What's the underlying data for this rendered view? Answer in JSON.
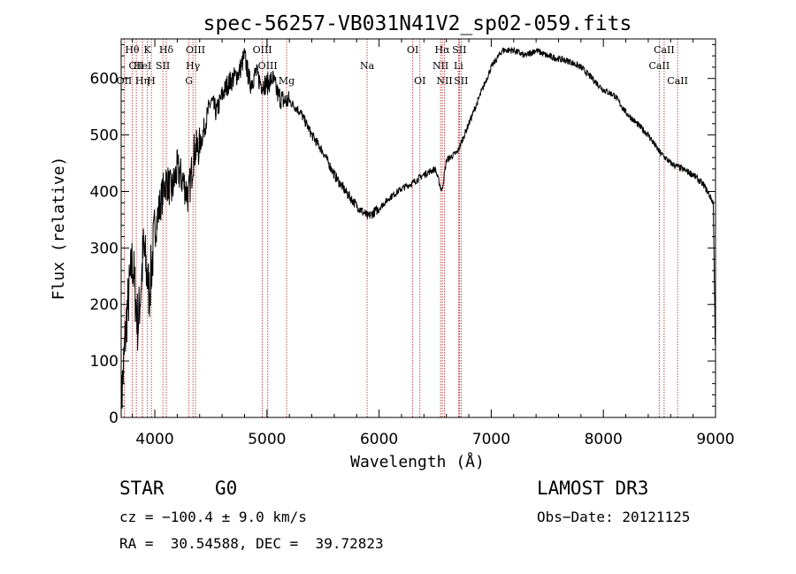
{
  "chart_data": {
    "type": "line",
    "title": "spec-56257-VB031N41V2_sp02-059.fits",
    "xlabel": "Wavelength (Å)",
    "ylabel": "Flux (relative)",
    "xlim": [
      3700,
      9000
    ],
    "ylim": [
      0,
      670
    ],
    "xticks": [
      4000,
      5000,
      6000,
      7000,
      8000,
      9000
    ],
    "yticks": [
      0,
      100,
      200,
      300,
      400,
      500,
      600
    ],
    "series": [
      {
        "name": "flux",
        "x": [
          3700,
          3750,
          3800,
          3850,
          3900,
          3950,
          4000,
          4050,
          4100,
          4150,
          4200,
          4250,
          4300,
          4350,
          4400,
          4450,
          4500,
          4550,
          4600,
          4650,
          4700,
          4750,
          4800,
          4850,
          4900,
          4950,
          5000,
          5050,
          5100,
          5150,
          5200,
          5300,
          5400,
          5500,
          5600,
          5700,
          5800,
          5900,
          6000,
          6100,
          6200,
          6300,
          6400,
          6500,
          6560,
          6600,
          6700,
          6800,
          6900,
          7000,
          7100,
          7200,
          7300,
          7400,
          7500,
          7600,
          7700,
          7800,
          7900,
          8000,
          8100,
          8200,
          8300,
          8400,
          8500,
          8550,
          8600,
          8650,
          8700,
          8800,
          8900,
          8980,
          9000
        ],
        "y": [
          20,
          180,
          280,
          160,
          300,
          220,
          330,
          380,
          420,
          400,
          440,
          420,
          390,
          470,
          480,
          520,
          560,
          540,
          570,
          590,
          600,
          610,
          640,
          590,
          610,
          590,
          590,
          600,
          570,
          560,
          560,
          540,
          500,
          470,
          430,
          400,
          375,
          355,
          370,
          390,
          405,
          415,
          430,
          440,
          400,
          455,
          470,
          520,
          570,
          620,
          650,
          650,
          640,
          650,
          640,
          635,
          630,
          620,
          600,
          580,
          570,
          540,
          520,
          500,
          470,
          460,
          450,
          445,
          440,
          430,
          410,
          380,
          100
        ]
      }
    ],
    "lines": [
      {
        "label": "Hθ",
        "x": 3798,
        "row": 0
      },
      {
        "label": "CII",
        "x": 3835,
        "row": 1
      },
      {
        "label": "OII",
        "x": 3727,
        "row": 2
      },
      {
        "label": "Hη",
        "x": 3889,
        "row": 2
      },
      {
        "label": "K",
        "x": 3934,
        "row": 0
      },
      {
        "label": "HeI",
        "x": 3889,
        "row": 1
      },
      {
        "label": "H",
        "x": 3969,
        "row": 2
      },
      {
        "label": "SII",
        "x": 4072,
        "row": 1
      },
      {
        "label": "Hδ",
        "x": 4102,
        "row": 0
      },
      {
        "label": "OIII",
        "x": 4363,
        "row": 0
      },
      {
        "label": "Hγ",
        "x": 4340,
        "row": 1
      },
      {
        "label": "G",
        "x": 4305,
        "row": 2
      },
      {
        "label": "OIII",
        "x": 4959,
        "row": 0
      },
      {
        "label": "OIII",
        "x": 5007,
        "row": 1
      },
      {
        "label": "Mg",
        "x": 5175,
        "row": 2
      },
      {
        "label": "Na",
        "x": 5893,
        "row": 1
      },
      {
        "label": "OI",
        "x": 6300,
        "row": 0
      },
      {
        "label": "OI",
        "x": 6364,
        "row": 2
      },
      {
        "label": "Hα",
        "x": 6563,
        "row": 0
      },
      {
        "label": "SII",
        "x": 6716,
        "row": 0
      },
      {
        "label": "NII",
        "x": 6548,
        "row": 1
      },
      {
        "label": "Li",
        "x": 6708,
        "row": 1
      },
      {
        "label": "NII",
        "x": 6583,
        "row": 2
      },
      {
        "label": "SII",
        "x": 6731,
        "row": 2
      },
      {
        "label": "CaII",
        "x": 8542,
        "row": 0
      },
      {
        "label": "CaII",
        "x": 8498,
        "row": 1
      },
      {
        "label": "CaII",
        "x": 8662,
        "row": 2
      }
    ]
  },
  "info": {
    "class": "STAR",
    "subclass": "G0",
    "survey": "LAMOST DR3",
    "cz": "cz = −100.4 ± 9.0 km/s",
    "obsdate": "Obs−Date: 20121125",
    "radec": "RA =  30.54588, DEC =  39.72823"
  }
}
